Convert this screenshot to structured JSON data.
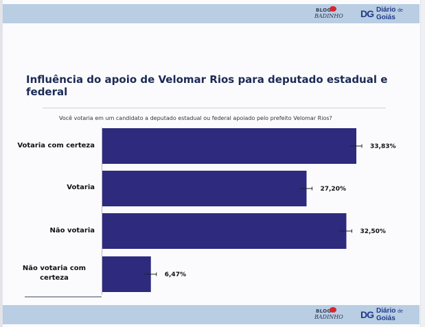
{
  "header": {
    "blog_logo_line1": "BLOG",
    "blog_logo_line2": "BADINHO",
    "dg_mark": "DG",
    "dg_name": "Diário",
    "dg_de": "de",
    "dg_place": "Goiás"
  },
  "footer": {
    "blog_logo_line1": "BLOG",
    "blog_logo_line2": "BADINHO",
    "dg_mark": "DG",
    "dg_name": "Diário",
    "dg_de": "de",
    "dg_place": "Goiás"
  },
  "chart_data": {
    "type": "bar",
    "orientation": "horizontal",
    "title": "Influência do apoio de Velomar Rios para deputado estadual e federal",
    "subtitle": "Você votaria em um candidato a deputado estadual ou federal apoiado pelo prefeito Velomar Rios?",
    "categories": [
      "Votaria com certeza",
      "Votaria",
      "Não votaria",
      "Não votaria com certeza"
    ],
    "category_lines": [
      [
        "Votaria com certeza"
      ],
      [
        "Votaria"
      ],
      [
        "Não votaria"
      ],
      [
        "Não votaria com",
        "certeza"
      ]
    ],
    "values": [
      33.83,
      27.2,
      32.5,
      6.47
    ],
    "value_labels": [
      "33,83%",
      "27,20%",
      "32,50%",
      "6,47%"
    ],
    "xlim": [
      0,
      33.83
    ],
    "bar_color": "#2e2a7e",
    "error_bars": true,
    "grid": false
  }
}
